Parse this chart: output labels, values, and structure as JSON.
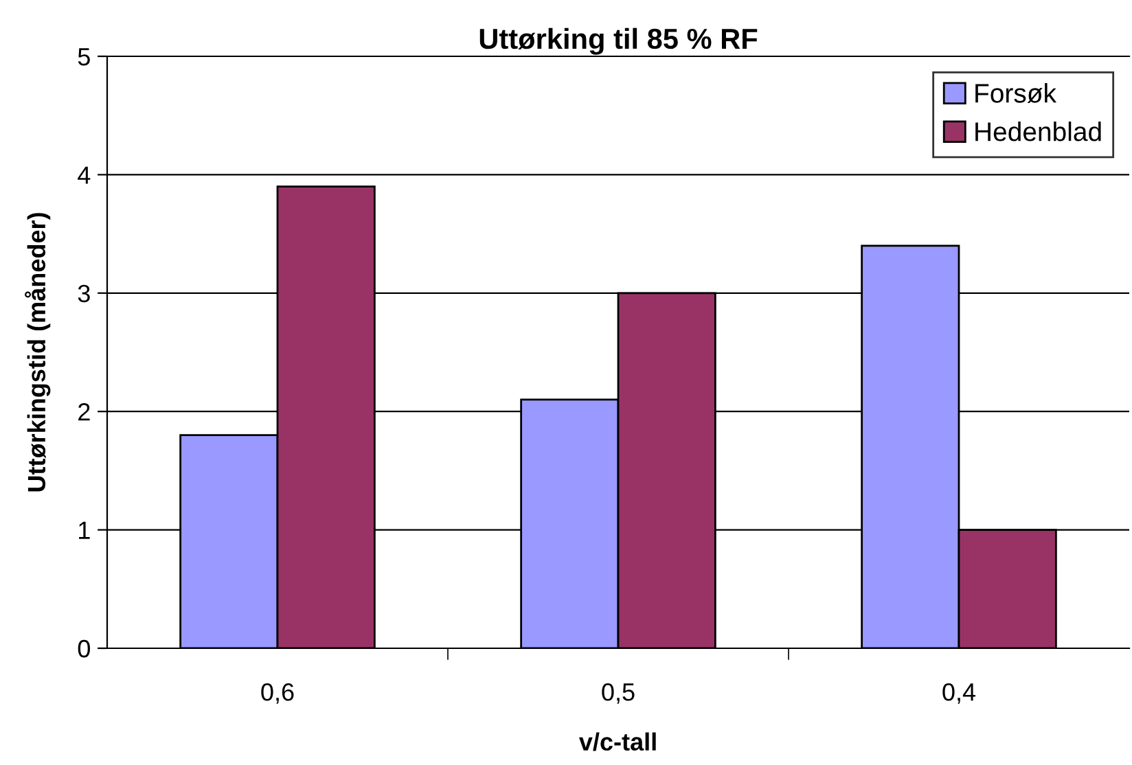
{
  "chart_data": {
    "type": "bar",
    "title": "Uttørking til 85 % RF",
    "xlabel": "v/c-tall",
    "ylabel": "Uttørkingstid (måneder)",
    "categories": [
      "0,6",
      "0,5",
      "0,4"
    ],
    "series": [
      {
        "name": "Forsøk",
        "color": "#9999ff",
        "values": [
          1.8,
          2.1,
          3.4
        ]
      },
      {
        "name": "Hedenblad",
        "color": "#993366",
        "values": [
          3.9,
          3.0,
          1.0
        ]
      }
    ],
    "ylim": [
      0,
      5
    ],
    "yticks": [
      0,
      1,
      2,
      3,
      4,
      5
    ],
    "grid": "y",
    "legend": "top right"
  }
}
